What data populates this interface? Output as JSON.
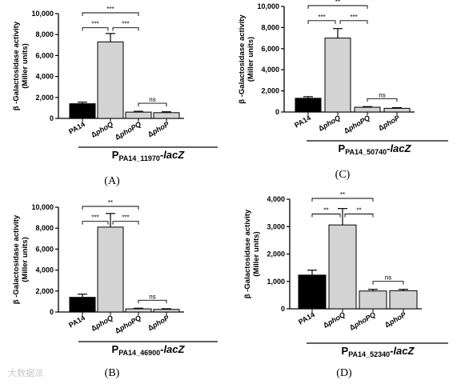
{
  "watermark": "大数据派",
  "chart_data": [
    {
      "panel_label": "(A)",
      "type": "bar",
      "ylabel_line1": "β -Galactosidase activity",
      "ylabel_line2": "(Miller units)",
      "ylim": [
        0,
        10000
      ],
      "ytick_labels": [
        "0",
        "2,000",
        "4,000",
        "6,000",
        "8,000",
        "10,000"
      ],
      "categories": [
        "PA14",
        "ΔphoQ",
        "ΔphoPQ",
        "ΔphoP"
      ],
      "values": [
        1400,
        7300,
        600,
        550
      ],
      "errors": [
        150,
        800,
        80,
        80
      ],
      "bar_colors": [
        "#000000",
        "#d3d3d3",
        "#d3d3d3",
        "#d3d3d3"
      ],
      "gene_main": "P",
      "gene_sub": "PA14_11970",
      "gene_suffix": "-lacZ",
      "comparisons": [
        {
          "from": 0,
          "to": 2,
          "label": "***"
        },
        {
          "from": 0,
          "to": 1,
          "label": "***"
        },
        {
          "from": 1,
          "to": 2,
          "label": "***"
        },
        {
          "from": 2,
          "to": 3,
          "label": "ns"
        }
      ]
    },
    {
      "panel_label": "(C)",
      "type": "bar",
      "ylabel_line1": "β -Galactosidase activity",
      "ylabel_line2": "(Miller units)",
      "ylim": [
        0,
        10000
      ],
      "ytick_labels": [
        "0",
        "2,000",
        "4,000",
        "6,000",
        "8,000",
        "10,000"
      ],
      "categories": [
        "PA14",
        "ΔphoQ",
        "ΔphoPQ",
        "ΔphoP"
      ],
      "values": [
        1300,
        7000,
        450,
        350
      ],
      "errors": [
        150,
        900,
        60,
        60
      ],
      "bar_colors": [
        "#000000",
        "#d3d3d3",
        "#d3d3d3",
        "#d3d3d3"
      ],
      "gene_main": "P",
      "gene_sub": "PA14_50740",
      "gene_suffix": "-lacZ",
      "comparisons": [
        {
          "from": 0,
          "to": 2,
          "label": "**"
        },
        {
          "from": 0,
          "to": 1,
          "label": "***"
        },
        {
          "from": 1,
          "to": 2,
          "label": "***"
        },
        {
          "from": 2,
          "to": 3,
          "label": "ns"
        }
      ]
    },
    {
      "panel_label": "(B)",
      "type": "bar",
      "ylabel_line1": "β -Galactosidase activity",
      "ylabel_line2": "(Miller units)",
      "ylim": [
        0,
        10000
      ],
      "ytick_labels": [
        "0",
        "2,000",
        "4,000",
        "6,000",
        "8,000",
        "10,000"
      ],
      "categories": [
        "PA14",
        "ΔphoQ",
        "ΔphoPQ",
        "ΔphoP"
      ],
      "values": [
        1400,
        8100,
        300,
        250
      ],
      "errors": [
        300,
        1300,
        60,
        60
      ],
      "bar_colors": [
        "#000000",
        "#d3d3d3",
        "#d3d3d3",
        "#d3d3d3"
      ],
      "gene_main": "P",
      "gene_sub": "PA14_46900",
      "gene_suffix": "-lacZ",
      "comparisons": [
        {
          "from": 0,
          "to": 2,
          "label": "**"
        },
        {
          "from": 0,
          "to": 1,
          "label": "***"
        },
        {
          "from": 1,
          "to": 2,
          "label": "***"
        },
        {
          "from": 2,
          "to": 3,
          "label": "ns"
        }
      ]
    },
    {
      "panel_label": "(D)",
      "type": "bar",
      "ylabel_line1": "β -Galactosidase activity",
      "ylabel_line2": "(Miller units)",
      "ylim": [
        0,
        4000
      ],
      "ytick_labels": [
        "0",
        "1,000",
        "2,000",
        "3,000",
        "4,000"
      ],
      "categories": [
        "PA14",
        "ΔphoQ",
        "ΔphoPQ",
        "ΔphoP"
      ],
      "values": [
        1230,
        3060,
        650,
        660
      ],
      "errors": [
        180,
        600,
        60,
        50
      ],
      "bar_colors": [
        "#000000",
        "#d3d3d3",
        "#d3d3d3",
        "#d3d3d3"
      ],
      "gene_main": "P",
      "gene_sub": "PA14_52340",
      "gene_suffix": "-lacZ",
      "comparisons": [
        {
          "from": 0,
          "to": 2,
          "label": "**"
        },
        {
          "from": 0,
          "to": 1,
          "label": "**"
        },
        {
          "from": 1,
          "to": 2,
          "label": "**"
        },
        {
          "from": 2,
          "to": 3,
          "label": "ns"
        }
      ]
    }
  ]
}
